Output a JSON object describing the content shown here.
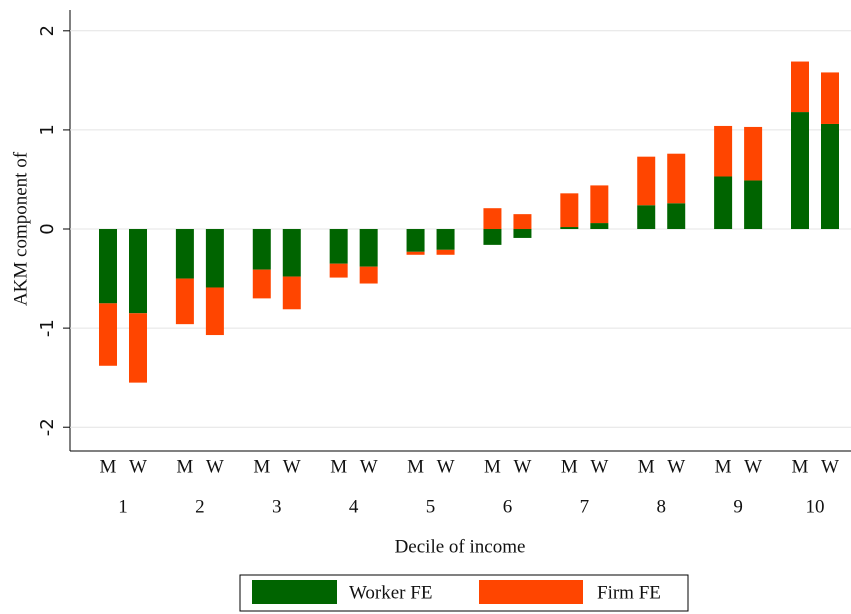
{
  "chart_data": {
    "type": "bar",
    "y_label": "AKM component of",
    "x_label": "Decile of income",
    "categories": [
      "1",
      "2",
      "3",
      "4",
      "5",
      "6",
      "7",
      "8",
      "9",
      "10"
    ],
    "groups": [
      "M",
      "W"
    ],
    "series": [
      {
        "name": "Worker FE",
        "color": "#006400",
        "values": [
          [
            -0.75,
            -0.85
          ],
          [
            -0.5,
            -0.59
          ],
          [
            -0.41,
            -0.48
          ],
          [
            -0.35,
            -0.38
          ],
          [
            -0.23,
            -0.21
          ],
          [
            -0.16,
            -0.09
          ],
          [
            0.02,
            0.06
          ],
          [
            0.24,
            0.26
          ],
          [
            0.53,
            0.49
          ],
          [
            1.18,
            1.06
          ]
        ]
      },
      {
        "name": "Firm FE",
        "color": "#ff4500",
        "values": [
          [
            -0.63,
            -0.7
          ],
          [
            -0.46,
            -0.48
          ],
          [
            -0.29,
            -0.33
          ],
          [
            -0.14,
            -0.17
          ],
          [
            -0.03,
            -0.05
          ],
          [
            0.21,
            0.15
          ],
          [
            0.34,
            0.38
          ],
          [
            0.49,
            0.5
          ],
          [
            0.51,
            0.54
          ],
          [
            0.51,
            0.52
          ]
        ]
      }
    ],
    "stacked": true,
    "ylim": [
      -2.24,
      2.21
    ],
    "yticks": [
      -2,
      -1,
      0,
      1,
      2
    ],
    "grid": true
  }
}
